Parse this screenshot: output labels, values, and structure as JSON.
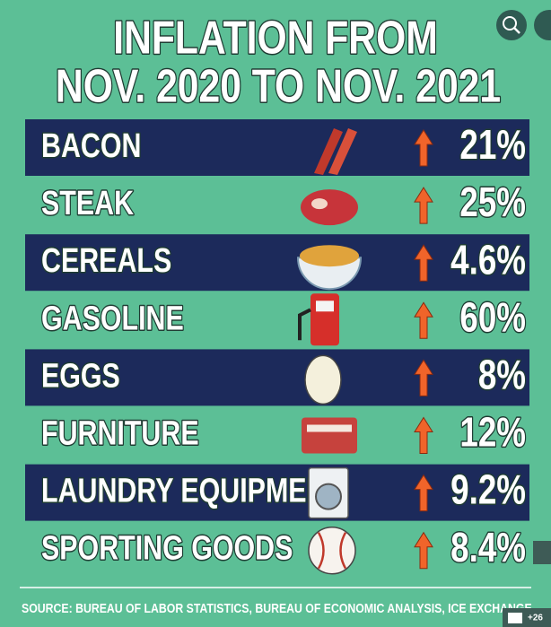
{
  "title": [
    "INFLATION FROM",
    "NOV. 2020 TO NOV. 2021"
  ],
  "rows": [
    {
      "label": "BACON",
      "value": "21%"
    },
    {
      "label": "STEAK",
      "value": "25%"
    },
    {
      "label": "CEREALS",
      "value": "4.6%"
    },
    {
      "label": "GASOLINE",
      "value": "60%"
    },
    {
      "label": "EGGS",
      "value": "8%"
    },
    {
      "label": "FURNITURE",
      "value": "12%"
    },
    {
      "label": "LAUNDRY EQUIPMENT",
      "value": "9.2%"
    },
    {
      "label": "SPORTING GOODS",
      "value": "8.4%"
    }
  ],
  "source": "SOURCE: BUREAU OF LABOR STATISTICS, BUREAU OF ECONOMIC ANALYSIS, ICE EXCHANGE",
  "photo_count": "+26"
}
